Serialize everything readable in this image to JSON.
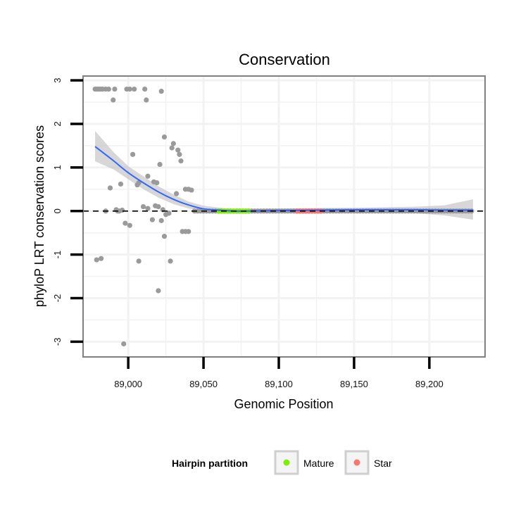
{
  "chart_data": {
    "type": "scatter",
    "title": "Conservation",
    "xlabel": "Genomic Position",
    "ylabel": "phyloP LRT conservation scores",
    "xlim": [
      88970,
      89237
    ],
    "ylim": [
      -3.35,
      3.1
    ],
    "x_ticks": [
      89000,
      89050,
      89100,
      89150,
      89200
    ],
    "x_tick_labels": [
      "89,000",
      "89,050",
      "89,100",
      "89,150",
      "89,200"
    ],
    "y_ticks": [
      3,
      2,
      1,
      0,
      -1,
      -2,
      -3
    ],
    "y_tick_labels": [
      "3",
      "2",
      "1",
      "0",
      "-1",
      "-2",
      "-3"
    ],
    "reference_line_y": 0,
    "grid": true,
    "colors": {
      "points": "#9a9a9a",
      "smooth": "#3366ff",
      "ribbon": "#bdbdbd",
      "mature": "#7cf000",
      "star": "#f8766d",
      "panel_border": "#808080",
      "grid": "#f2f2f2"
    },
    "points": [
      [
        88978,
        2.8
      ],
      [
        88979,
        2.8
      ],
      [
        88980,
        2.8
      ],
      [
        88981,
        2.8
      ],
      [
        88982,
        2.8
      ],
      [
        88983,
        2.8
      ],
      [
        88985,
        2.8
      ],
      [
        88987,
        2.8
      ],
      [
        88991,
        2.8
      ],
      [
        88999,
        2.8
      ],
      [
        89001,
        2.8
      ],
      [
        89004,
        2.8
      ],
      [
        89011,
        2.8
      ],
      [
        88990,
        2.55
      ],
      [
        89012,
        2.55
      ],
      [
        89022,
        2.75
      ],
      [
        89024,
        1.7
      ],
      [
        89030,
        1.55
      ],
      [
        89029,
        1.45
      ],
      [
        89033,
        1.4
      ],
      [
        89034,
        1.3
      ],
      [
        89003,
        1.3
      ],
      [
        89035,
        1.15
      ],
      [
        89021,
        1.07
      ],
      [
        89013,
        0.8
      ],
      [
        89017,
        0.67
      ],
      [
        89019,
        0.65
      ],
      [
        89007,
        0.65
      ],
      [
        89006,
        0.6
      ],
      [
        88995,
        0.62
      ],
      [
        88988,
        0.53
      ],
      [
        89038,
        0.5
      ],
      [
        89040,
        0.5
      ],
      [
        89042,
        0.48
      ],
      [
        89032,
        0.4
      ],
      [
        89010,
        0.1
      ],
      [
        89020,
        0.1
      ],
      [
        89018,
        0.12
      ],
      [
        89013,
        0.06
      ],
      [
        89023,
        0.03
      ],
      [
        88992,
        0.03
      ],
      [
        88996,
        0.02
      ],
      [
        88985,
        0.0
      ],
      [
        88993,
        0.0
      ],
      [
        88994,
        0.0
      ],
      [
        89027,
        -0.05
      ],
      [
        89025,
        -0.08
      ],
      [
        89022,
        -0.22
      ],
      [
        89016,
        -0.2
      ],
      [
        88998,
        -0.28
      ],
      [
        89001,
        -0.33
      ],
      [
        89036,
        -0.47
      ],
      [
        89038,
        -0.47
      ],
      [
        89040,
        -0.47
      ],
      [
        89024,
        -0.58
      ],
      [
        88979,
        -1.12
      ],
      [
        88982,
        -1.09
      ],
      [
        89007,
        -1.15
      ],
      [
        89028,
        -1.15
      ],
      [
        89020,
        -1.83
      ],
      [
        88997,
        -3.05
      ]
    ],
    "smooth_fit": {
      "x": [
        88978,
        88990,
        89000,
        89010,
        89020,
        89030,
        89040,
        89050,
        89060,
        89070,
        89080,
        89100,
        89130,
        89160,
        89190,
        89210,
        89229
      ],
      "y": [
        1.48,
        1.16,
        0.88,
        0.65,
        0.44,
        0.27,
        0.14,
        0.05,
        0.02,
        0.0,
        0.0,
        0.01,
        0.02,
        0.03,
        0.03,
        0.02,
        0.02
      ],
      "ribbon_lower": [
        1.14,
        0.96,
        0.73,
        0.5,
        0.31,
        0.16,
        0.06,
        -0.02,
        -0.04,
        -0.05,
        -0.05,
        -0.05,
        -0.04,
        -0.04,
        -0.05,
        -0.1,
        -0.2
      ],
      "ribbon_upper": [
        1.84,
        1.36,
        1.03,
        0.8,
        0.57,
        0.38,
        0.22,
        0.12,
        0.08,
        0.05,
        0.05,
        0.06,
        0.07,
        0.08,
        0.1,
        0.13,
        0.27
      ]
    },
    "partitions": [
      {
        "name": "Mature",
        "color": "#7cf000",
        "x": [
          89060,
          89062,
          89064,
          89066,
          89068,
          89070,
          89072,
          89074,
          89076,
          89078,
          89080
        ],
        "y": [
          0.0,
          0.0,
          0.0,
          0.0,
          0.0,
          0.0,
          0.0,
          0.0,
          0.0,
          0.0,
          0.0
        ]
      },
      {
        "name": "Star",
        "color": "#f8766d",
        "x": [
          89112,
          89114,
          89116,
          89118,
          89120,
          89122,
          89124,
          89126,
          89128
        ],
        "y": [
          0.0,
          0.0,
          0.0,
          0.0,
          0.0,
          0.0,
          0.0,
          0.0,
          0.0
        ]
      }
    ],
    "flat_points": {
      "x": [
        89044,
        89046,
        89048,
        89050,
        89052,
        89054,
        89056,
        89058,
        89082,
        89084,
        89086,
        89088,
        89090,
        89092,
        89094,
        89096,
        89098,
        89100,
        89102,
        89104,
        89106,
        89108,
        89110,
        89130,
        89132,
        89134,
        89136,
        89138,
        89140,
        89142,
        89144,
        89146,
        89148,
        89150,
        89152,
        89154,
        89156,
        89158,
        89160,
        89162,
        89164,
        89166,
        89168,
        89170,
        89172,
        89174,
        89176,
        89178,
        89180,
        89182,
        89184,
        89186,
        89188,
        89190,
        89192,
        89194,
        89196,
        89198,
        89200,
        89202,
        89204,
        89206,
        89208,
        89210,
        89212,
        89214,
        89216,
        89218,
        89220,
        89222,
        89224,
        89226,
        89228
      ],
      "y": 0.0
    },
    "legend": {
      "title": "Hairpin partition",
      "items": [
        {
          "label": "Mature",
          "color": "#7cf000"
        },
        {
          "label": "Star",
          "color": "#f8766d"
        }
      ],
      "position": "bottom"
    }
  }
}
